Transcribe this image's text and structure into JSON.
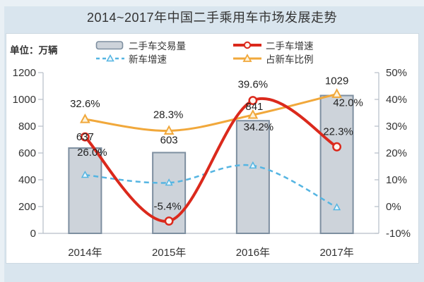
{
  "title": "2014~2017年中国二手乘用车市场发展走势",
  "unit_label": "单位：万辆",
  "legend": [
    {
      "label": "二手车交易量",
      "swatch": "bar"
    },
    {
      "label": "二手车增速",
      "swatch": "red-line-circle"
    },
    {
      "label": "新车增速",
      "swatch": "blue-dashed-triangle"
    },
    {
      "label": "占新车比例",
      "swatch": "orange-line-triangle"
    }
  ],
  "chart_data": {
    "type": "combo-bar-line",
    "title": "2014~2017年中国二手乘用车市场发展走势",
    "categories": [
      "2014年",
      "2015年",
      "2016年",
      "2017年"
    ],
    "series": [
      {
        "name": "二手车交易量",
        "type": "bar",
        "axis": "left",
        "unit": "万辆",
        "values": [
          637,
          603,
          841,
          1029
        ],
        "labels": [
          "637",
          "603",
          "841",
          "1029"
        ]
      },
      {
        "name": "二手车增速",
        "type": "line",
        "axis": "right",
        "values": [
          26.0,
          -5.4,
          39.6,
          22.3
        ],
        "labels": [
          "26.0%",
          "-5.4%",
          "39.6%",
          "22.3%"
        ]
      },
      {
        "name": "新车增速",
        "type": "dashed-line",
        "axis": "right",
        "estimated": true,
        "values": [
          11.8,
          8.9,
          15.3,
          -0.3
        ],
        "labels": []
      },
      {
        "name": "占新车比例",
        "type": "line",
        "axis": "right",
        "values": [
          32.6,
          28.3,
          34.2,
          42.0
        ],
        "labels": [
          "32.6%",
          "28.3%",
          "34.2%",
          "42.0%"
        ]
      }
    ],
    "left_axis": {
      "label": "单位：万辆",
      "range": [
        0,
        1200
      ],
      "ticks": [
        1200,
        1000,
        800,
        600,
        400,
        200,
        0
      ],
      "tick_labels": [
        "1200",
        "1000",
        "800",
        "600",
        "400",
        "200",
        "0"
      ]
    },
    "right_axis": {
      "range": [
        -10,
        50
      ],
      "ticks": [
        50,
        40,
        30,
        20,
        10,
        0,
        -10
      ],
      "tick_labels": [
        "50%",
        "40%",
        "30%",
        "20%",
        "10%",
        "0%",
        "-10%"
      ]
    },
    "grid": false,
    "legend_position": "top"
  },
  "colors": {
    "page_bg": "#d9e5ee",
    "top_strip": "#e9f0f5",
    "panel_bg": "#ffffff",
    "panel_border": "#cdd9e2",
    "bar_fill": "#cdd3da",
    "bar_border": "#7e8fa0",
    "red_line": "#db291c",
    "red_marker_fill": "#fdf4ee",
    "blue_line": "#55b5e2",
    "blue_marker_fill": "#eaf7fd",
    "orange_line": "#f1a83b",
    "orange_marker_fill": "#fdf3dc",
    "axis_line": "#b6bec7",
    "axis_text": "#333333",
    "label_text": "#222222"
  }
}
